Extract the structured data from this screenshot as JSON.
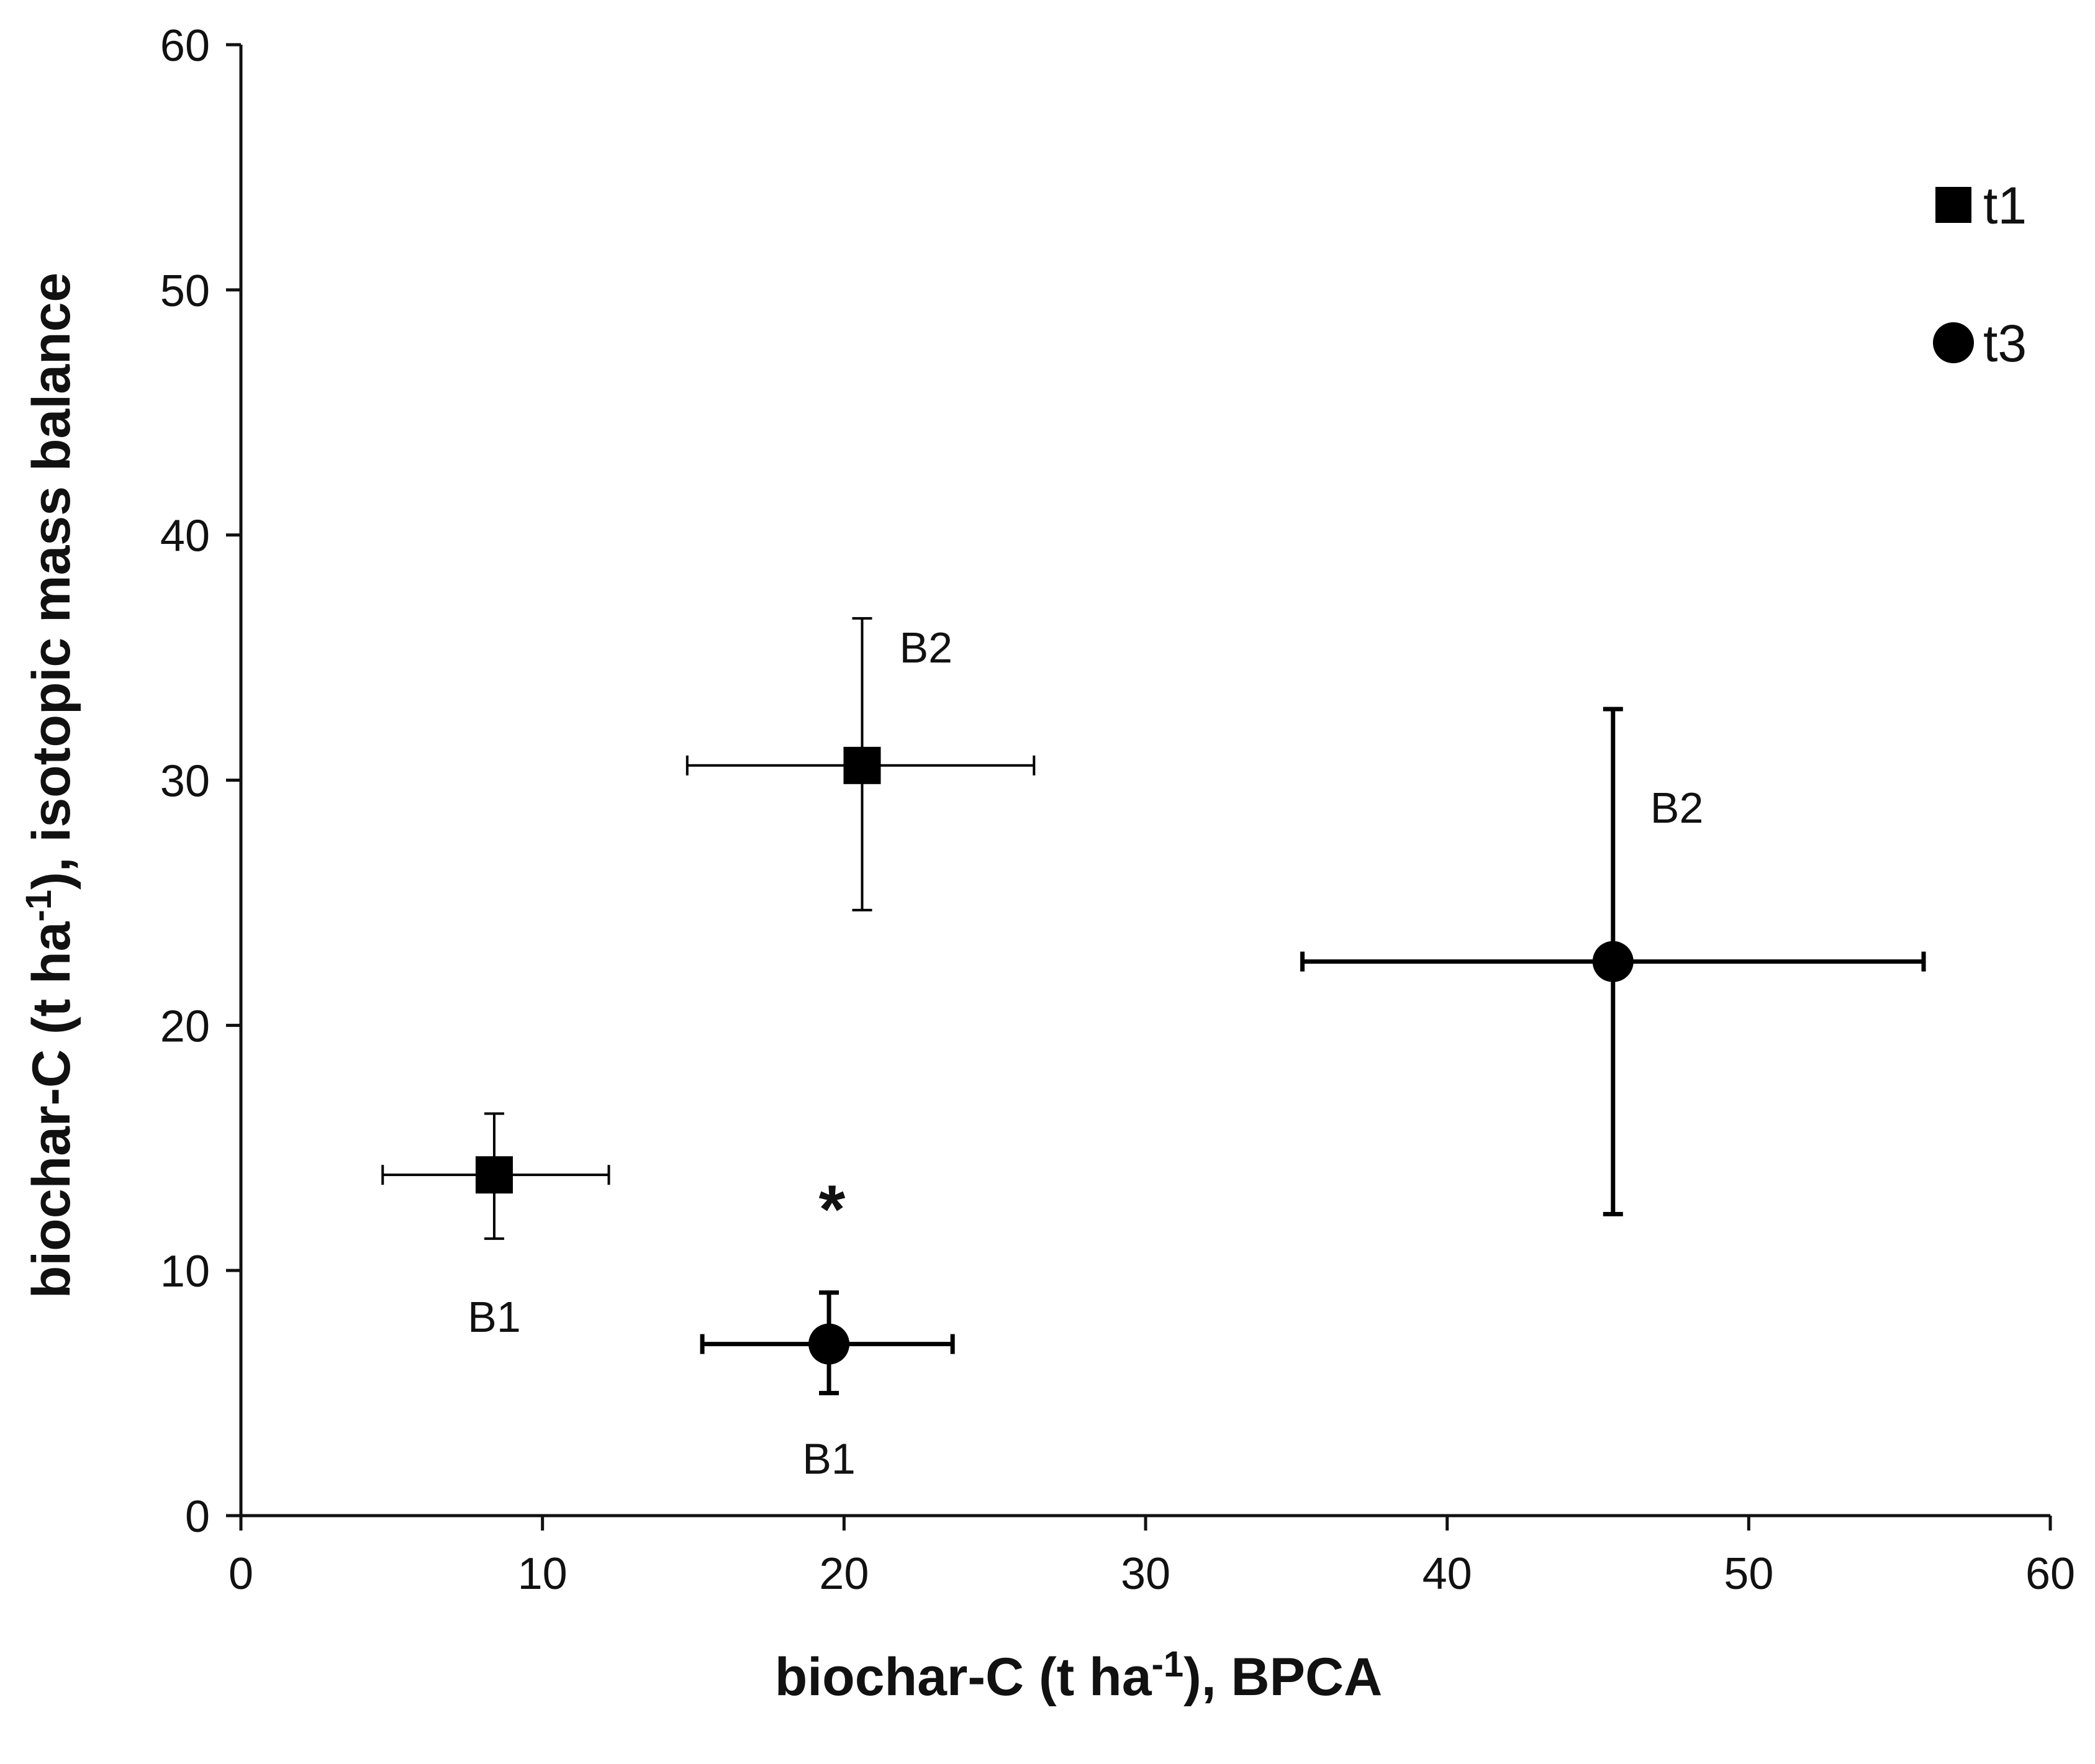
{
  "chart_data": {
    "type": "scatter",
    "title": "",
    "xlabel": "biochar-C (t ha⁻¹), BPCA",
    "ylabel": "biochar-C (t ha⁻¹), isotopic mass balance",
    "xlim": [
      0,
      60
    ],
    "ylim": [
      0,
      60
    ],
    "xticks": [
      0,
      10,
      20,
      30,
      40,
      50,
      60
    ],
    "yticks": [
      0,
      10,
      20,
      30,
      40,
      50,
      60
    ],
    "grid": false,
    "legend_position": "top-right",
    "series": [
      {
        "name": "t1",
        "marker": "square",
        "points": [
          {
            "label": "B1",
            "x": 8.4,
            "y": 13.9,
            "x_err": [
              3.7,
              3.8
            ],
            "y_err": [
              2.6,
              2.5
            ]
          },
          {
            "label": "B2",
            "x": 20.6,
            "y": 30.6,
            "x_err": [
              5.8,
              5.7
            ],
            "y_err": [
              5.9,
              6.0
            ]
          }
        ]
      },
      {
        "name": "t3",
        "marker": "circle",
        "points": [
          {
            "label": "B1",
            "x": 19.5,
            "y": 7.0,
            "x_err": [
              4.2,
              4.1
            ],
            "y_err": [
              2.0,
              2.1
            ]
          },
          {
            "label": "B2",
            "x": 45.5,
            "y": 22.6,
            "x_err": [
              10.3,
              10.3
            ],
            "y_err": [
              10.3,
              10.3
            ]
          }
        ]
      }
    ],
    "annotations": [
      {
        "text": "*",
        "x": 19.6,
        "y": 12.5
      }
    ]
  },
  "colors": {
    "axis": "#111111",
    "marker": "#000000",
    "background": "#ffffff"
  }
}
